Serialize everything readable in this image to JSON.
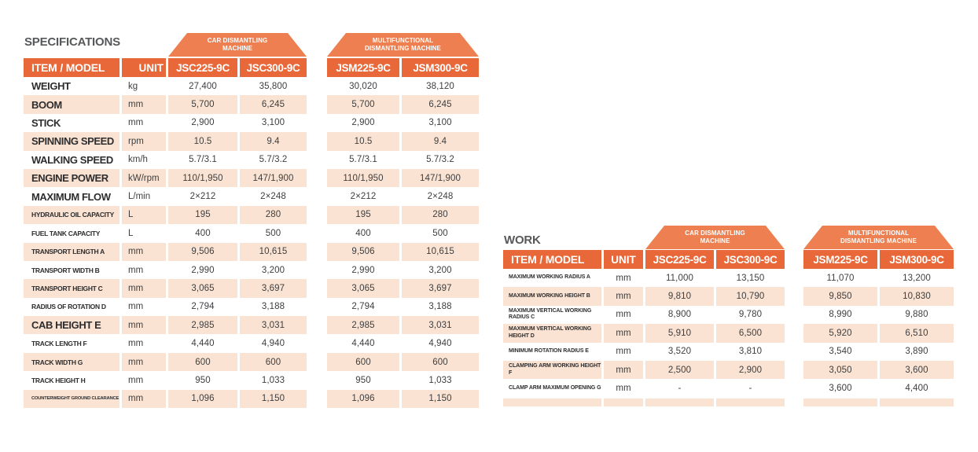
{
  "colors": {
    "header_orange": "#E8683A",
    "banner_orange": "#ED7F50",
    "row_peach": "#FAE3D2",
    "title_gray": "#57585A"
  },
  "tables": [
    {
      "title": "SPECIFICATIONS",
      "header": {
        "item_label": "ITEM / MODEL",
        "unit_label": "UNIT"
      },
      "groups": [
        {
          "lines": [
            "CAR DISMANTLING",
            "MACHINE"
          ],
          "models": [
            "JSC225-9C",
            "JSC300-9C"
          ]
        },
        {
          "lines": [
            "MULTIFUNCTIONAL",
            "DISMANTLING MACHINE"
          ],
          "models": [
            "JSM225-9C",
            "JSM300-9C"
          ]
        }
      ],
      "rows": [
        {
          "item": "WEIGHT",
          "unit": "kg",
          "values": [
            "27,400",
            "35,800",
            "30,020",
            "38,120"
          ],
          "size": "lg"
        },
        {
          "item": "BOOM",
          "unit": "mm",
          "values": [
            "5,700",
            "6,245",
            "5,700",
            "6,245"
          ],
          "size": "lg"
        },
        {
          "item": "STICK",
          "unit": "mm",
          "values": [
            "2,900",
            "3,100",
            "2,900",
            "3,100"
          ],
          "size": "lg"
        },
        {
          "item": "SPINNING SPEED",
          "unit": "rpm",
          "values": [
            "10.5",
            "9.4",
            "10.5",
            "9.4"
          ],
          "size": "lg"
        },
        {
          "item": "WALKING SPEED",
          "unit": "km/h",
          "values": [
            "5.7/3.1",
            "5.7/3.2",
            "5.7/3.1",
            "5.7/3.2"
          ],
          "size": "lg"
        },
        {
          "item": "ENGINE POWER",
          "unit": "kW/rpm",
          "values": [
            "110/1,950",
            "147/1,900",
            "110/1,950",
            "147/1,900"
          ],
          "size": "lg"
        },
        {
          "item": "MAXIMUM FLOW",
          "unit": "L/min",
          "values": [
            "2×212",
            "2×248",
            "2×212",
            "2×248"
          ],
          "size": "lg"
        },
        {
          "item": "HYDRAULIC OIL CAPACITY",
          "unit": "L",
          "values": [
            "195",
            "280",
            "195",
            "280"
          ],
          "size": "md"
        },
        {
          "item": "FUEL TANK CAPACITY",
          "unit": "L",
          "values": [
            "400",
            "500",
            "400",
            "500"
          ],
          "size": "md"
        },
        {
          "item": "TRANSPORT LENGTH A",
          "unit": "mm",
          "values": [
            "9,506",
            "10,615",
            "9,506",
            "10,615"
          ],
          "size": "md"
        },
        {
          "item": "TRANSPORT WIDTH B",
          "unit": "mm",
          "values": [
            "2,990",
            "3,200",
            "2,990",
            "3,200"
          ],
          "size": "md"
        },
        {
          "item": "TRANSPORT HEIGHT C",
          "unit": "mm",
          "values": [
            "3,065",
            "3,697",
            "3,065",
            "3,697"
          ],
          "size": "md"
        },
        {
          "item": "RADIUS OF ROTATION D",
          "unit": "mm",
          "values": [
            "2,794",
            "3,188",
            "2,794",
            "3,188"
          ],
          "size": "md"
        },
        {
          "item": "CAB HEIGHT E",
          "unit": "mm",
          "values": [
            "2,985",
            "3,031",
            "2,985",
            "3,031"
          ],
          "size": "lg"
        },
        {
          "item": "TRACK LENGTH F",
          "unit": "mm",
          "values": [
            "4,440",
            "4,940",
            "4,440",
            "4,940"
          ],
          "size": "md"
        },
        {
          "item": "TRACK WIDTH G",
          "unit": "mm",
          "values": [
            "600",
            "600",
            "600",
            "600"
          ],
          "size": "md"
        },
        {
          "item": "TRACK HEIGHT H",
          "unit": "mm",
          "values": [
            "950",
            "1,033",
            "950",
            "1,033"
          ],
          "size": "md"
        },
        {
          "item": "COUNTERWEIGHT GROUND CLEARANCE I",
          "unit": "mm",
          "values": [
            "1,096",
            "1,150",
            "1,096",
            "1,150"
          ],
          "size": "xs"
        }
      ],
      "trailing_strip": false
    },
    {
      "title": "WORK",
      "header": {
        "item_label": "ITEM / MODEL",
        "unit_label": "UNIT"
      },
      "groups": [
        {
          "lines": [
            "CAR DISMANTLING",
            "MACHINE"
          ],
          "models": [
            "JSC225-9C",
            "JSC300-9C"
          ]
        },
        {
          "lines": [
            "MULTIFUNCTIONAL",
            "DISMANTLING MACHINE"
          ],
          "models": [
            "JSM225-9C",
            "JSM300-9C"
          ]
        }
      ],
      "rows": [
        {
          "item": "MAXIMUM WORKING RADIUS A",
          "unit": "mm",
          "values": [
            "11,000",
            "13,150",
            "11,070",
            "13,200"
          ],
          "size": "sm"
        },
        {
          "item": "MAXIMUM WORKING HEIGHT B",
          "unit": "mm",
          "values": [
            "9,810",
            "10,790",
            "9,850",
            "10,830"
          ],
          "size": "sm"
        },
        {
          "item": "MAXIMUM VERTICAL WORKING RADIUS C",
          "unit": "mm",
          "values": [
            "8,900",
            "9,780",
            "8,990",
            "9,880"
          ],
          "size": "sm"
        },
        {
          "item": "MAXIMUM VERTICAL WORKING HEIGHT D",
          "unit": "mm",
          "values": [
            "5,910",
            "6,500",
            "5,920",
            "6,510"
          ],
          "size": "sm"
        },
        {
          "item": "MINIMUM ROTATION RADIUS E",
          "unit": "mm",
          "values": [
            "3,520",
            "3,810",
            "3,540",
            "3,890"
          ],
          "size": "sm"
        },
        {
          "item": "CLAMPING ARM WORKING HEIGHT F",
          "unit": "mm",
          "values": [
            "2,500",
            "2,900",
            "3,050",
            "3,600"
          ],
          "size": "sm"
        },
        {
          "item": "CLAMP ARM MAXIMUM OPENING G",
          "unit": "mm",
          "values": [
            "-",
            "-",
            "3,600",
            "4,400"
          ],
          "size": "sm"
        }
      ],
      "trailing_strip": true
    }
  ]
}
